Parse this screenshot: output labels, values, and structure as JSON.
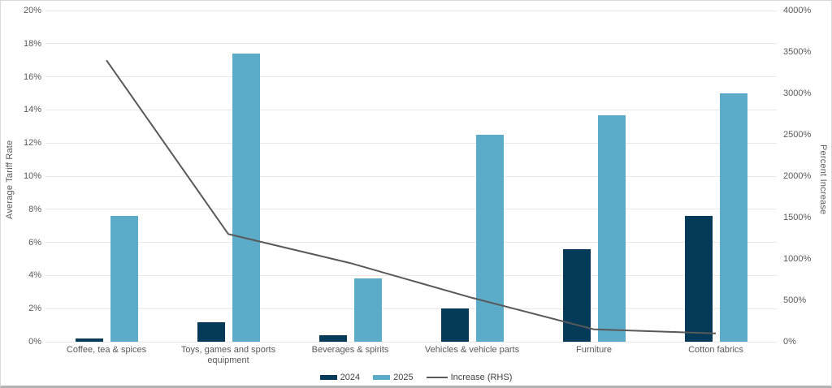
{
  "chart_data": {
    "type": "bar+line",
    "title": "",
    "categories": [
      "Coffee, tea & spices",
      "Toys, games and sports equipment",
      "Beverages & spirits",
      "Vehicles & vehicle parts",
      "Furniture",
      "Cotton fabrics"
    ],
    "series": [
      {
        "name": "2024",
        "type": "bar",
        "axis": "left",
        "color": "#063a59",
        "values": [
          0.2,
          1.2,
          0.4,
          2.0,
          5.6,
          7.6
        ]
      },
      {
        "name": "2025",
        "type": "bar",
        "axis": "left",
        "color": "#5babc9",
        "values": [
          7.6,
          17.4,
          3.8,
          12.5,
          13.7,
          15.0
        ]
      },
      {
        "name": "Increase (RHS)",
        "type": "line",
        "axis": "right",
        "color": "#595959",
        "values": [
          3400,
          1300,
          950,
          530,
          150,
          100
        ]
      }
    ],
    "left_axis": {
      "label": "Average Tariff Rate",
      "min": 0,
      "max": 20,
      "step": 2,
      "ticks": [
        "0%",
        "2%",
        "4%",
        "6%",
        "8%",
        "10%",
        "12%",
        "14%",
        "16%",
        "18%",
        "20%"
      ]
    },
    "right_axis": {
      "label": "Percent Increase",
      "min": 0,
      "max": 4000,
      "step": 500,
      "ticks": [
        "0%",
        "500%",
        "1000%",
        "1500%",
        "2000%",
        "2500%",
        "3000%",
        "3500%",
        "4000%"
      ]
    },
    "grid": true,
    "legend_position": "bottom",
    "colors": {
      "gridline": "#e8e8e8",
      "axis_text": "#595959",
      "background": "#ffffff",
      "card_border": "#d9d9d9"
    }
  }
}
